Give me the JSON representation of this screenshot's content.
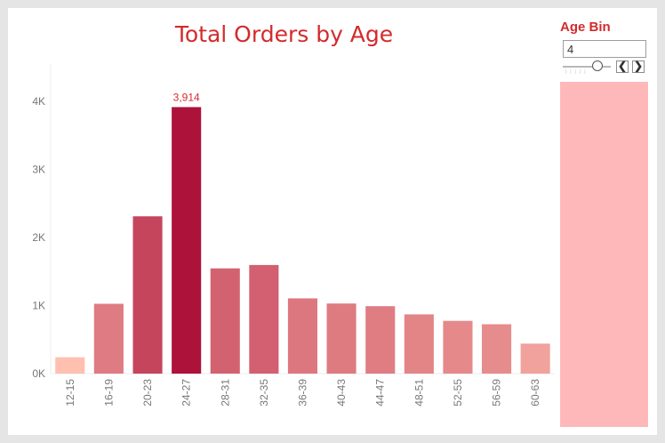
{
  "chart_data": {
    "type": "bar",
    "title": "Total Orders by Age",
    "categories": [
      "12-15",
      "16-19",
      "20-23",
      "24-27",
      "28-31",
      "32-35",
      "36-39",
      "40-43",
      "44-47",
      "48-51",
      "52-55",
      "56-59",
      "60-63"
    ],
    "values": [
      240,
      1025,
      2310,
      3914,
      1545,
      1595,
      1105,
      1030,
      990,
      870,
      775,
      725,
      440
    ],
    "y_ticks": [
      "0K",
      "1K",
      "2K",
      "3K",
      "4K"
    ],
    "y_tick_values": [
      0,
      1000,
      2000,
      3000,
      4000
    ],
    "ylim": [
      0,
      4350
    ],
    "data_labels": [
      {
        "category": "24-27",
        "text": "3,914"
      }
    ],
    "color_scale": {
      "low": "#ffc0b0",
      "high": "#ad123b"
    },
    "label_color": "#d42a2c",
    "grid": false
  },
  "parameter": {
    "label": "Age Bin",
    "value": "4",
    "slider_level": 0.7,
    "prev_icon": "chevron-left-icon",
    "next_icon": "chevron-right-icon",
    "prev_glyph": "❮",
    "next_glyph": "❯"
  },
  "filter_panel_color": "#ffb8ba"
}
